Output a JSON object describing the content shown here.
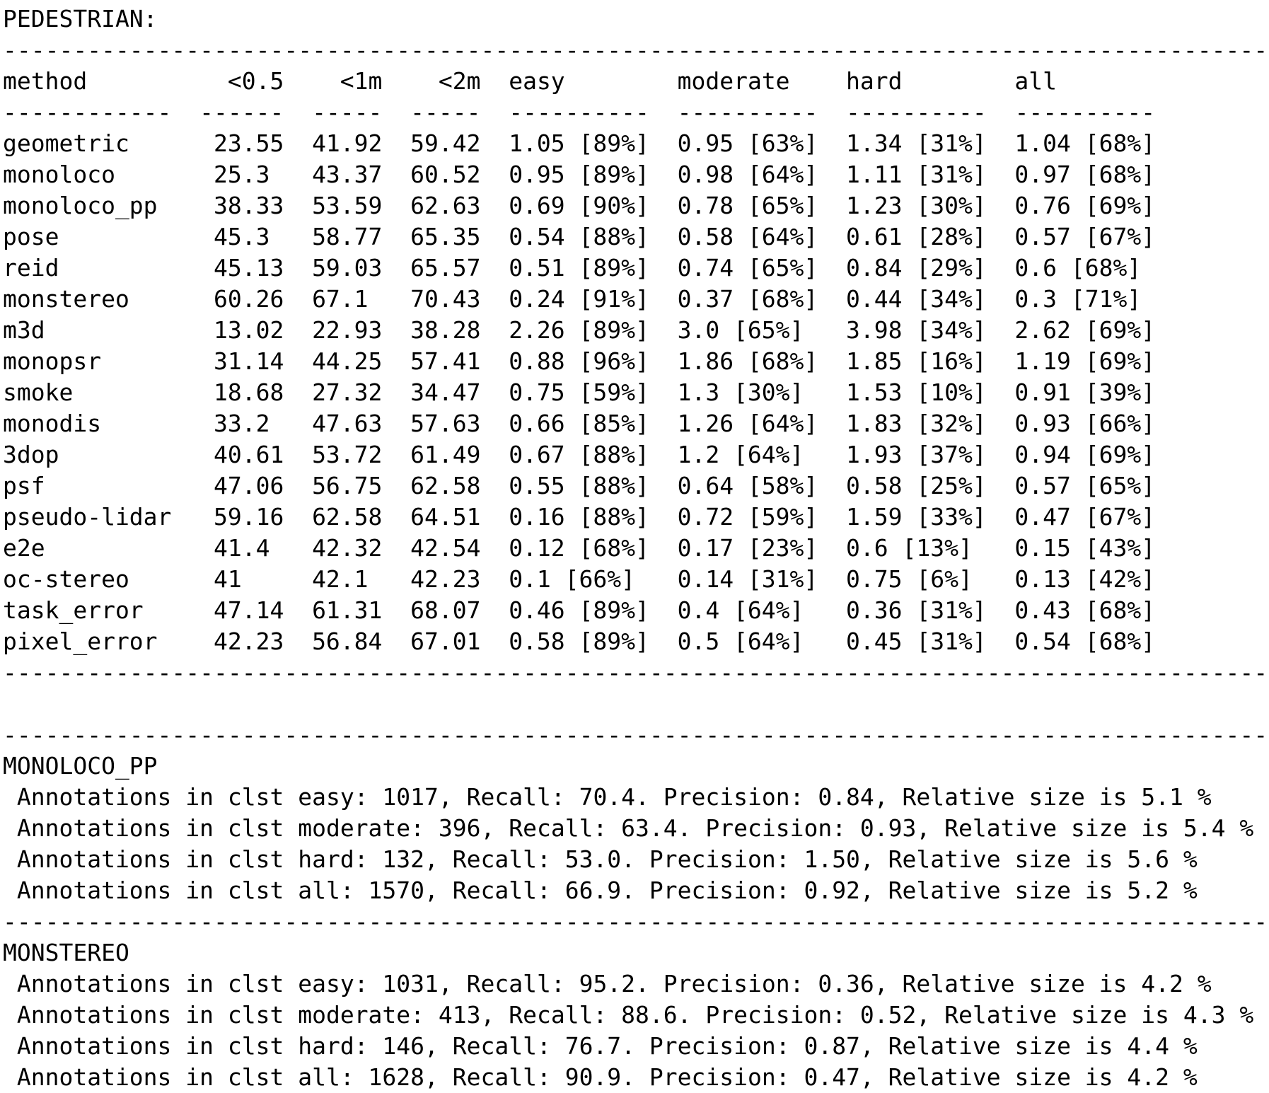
{
  "section_title": "PEDESTRIAN:",
  "table": {
    "headers": [
      "method",
      "<0.5",
      "<1m",
      "<2m",
      "easy",
      "moderate",
      "hard",
      "all"
    ],
    "rows": [
      [
        "geometric",
        "23.55",
        "41.92",
        "59.42",
        "1.05 [89%]",
        "0.95 [63%]",
        "1.34 [31%]",
        "1.04 [68%]"
      ],
      [
        "monoloco",
        "25.3",
        "43.37",
        "60.52",
        "0.95 [89%]",
        "0.98 [64%]",
        "1.11 [31%]",
        "0.97 [68%]"
      ],
      [
        "monoloco_pp",
        "38.33",
        "53.59",
        "62.63",
        "0.69 [90%]",
        "0.78 [65%]",
        "1.23 [30%]",
        "0.76 [69%]"
      ],
      [
        "pose",
        "45.3",
        "58.77",
        "65.35",
        "0.54 [88%]",
        "0.58 [64%]",
        "0.61 [28%]",
        "0.57 [67%]"
      ],
      [
        "reid",
        "45.13",
        "59.03",
        "65.57",
        "0.51 [89%]",
        "0.74 [65%]",
        "0.84 [29%]",
        "0.6 [68%]"
      ],
      [
        "monstereo",
        "60.26",
        "67.1",
        "70.43",
        "0.24 [91%]",
        "0.37 [68%]",
        "0.44 [34%]",
        "0.3 [71%]"
      ],
      [
        "m3d",
        "13.02",
        "22.93",
        "38.28",
        "2.26 [89%]",
        "3.0 [65%]",
        "3.98 [34%]",
        "2.62 [69%]"
      ],
      [
        "monopsr",
        "31.14",
        "44.25",
        "57.41",
        "0.88 [96%]",
        "1.86 [68%]",
        "1.85 [16%]",
        "1.19 [69%]"
      ],
      [
        "smoke",
        "18.68",
        "27.32",
        "34.47",
        "0.75 [59%]",
        "1.3 [30%]",
        "1.53 [10%]",
        "0.91 [39%]"
      ],
      [
        "monodis",
        "33.2",
        "47.63",
        "57.63",
        "0.66 [85%]",
        "1.26 [64%]",
        "1.83 [32%]",
        "0.93 [66%]"
      ],
      [
        "3dop",
        "40.61",
        "53.72",
        "61.49",
        "0.67 [88%]",
        "1.2 [64%]",
        "1.93 [37%]",
        "0.94 [69%]"
      ],
      [
        "psf",
        "47.06",
        "56.75",
        "62.58",
        "0.55 [88%]",
        "0.64 [58%]",
        "0.58 [25%]",
        "0.57 [65%]"
      ],
      [
        "pseudo-lidar",
        "59.16",
        "62.58",
        "64.51",
        "0.16 [88%]",
        "0.72 [59%]",
        "1.59 [33%]",
        "0.47 [67%]"
      ],
      [
        "e2e",
        "41.4",
        "42.32",
        "42.54",
        "0.12 [68%]",
        "0.17 [23%]",
        "0.6 [13%]",
        "0.15 [43%]"
      ],
      [
        "oc-stereo",
        "41",
        "42.1",
        "42.23",
        "0.1 [66%]",
        "0.14 [31%]",
        "0.75 [6%]",
        "0.13 [42%]"
      ],
      [
        "task_error",
        "47.14",
        "61.31",
        "68.07",
        "0.46 [89%]",
        "0.4 [64%]",
        "0.36 [31%]",
        "0.43 [68%]"
      ],
      [
        "pixel_error",
        "42.23",
        "56.84",
        "67.01",
        "0.58 [89%]",
        "0.5 [64%]",
        "0.45 [31%]",
        "0.54 [68%]"
      ]
    ]
  },
  "summaries": [
    {
      "name": "MONOLOCO_PP",
      "lines": [
        " Annotations in clst easy: 1017, Recall: 70.4. Precision: 0.84, Relative size is 5.1 %",
        " Annotations in clst moderate: 396, Recall: 63.4. Precision: 0.93, Relative size is 5.4 %",
        " Annotations in clst hard: 132, Recall: 53.0. Precision: 1.50, Relative size is 5.6 %",
        " Annotations in clst all: 1570, Recall: 66.9. Precision: 0.92, Relative size is 5.2 %"
      ]
    },
    {
      "name": "MONSTEREO",
      "lines": [
        " Annotations in clst easy: 1031, Recall: 95.2. Precision: 0.36, Relative size is 4.2 %",
        " Annotations in clst moderate: 413, Recall: 88.6. Precision: 0.52, Relative size is 4.3 %",
        " Annotations in clst hard: 146, Recall: 76.7. Precision: 0.87, Relative size is 4.4 %",
        " Annotations in clst all: 1628, Recall: 90.9. Precision: 0.47, Relative size is 4.2 %"
      ]
    }
  ]
}
